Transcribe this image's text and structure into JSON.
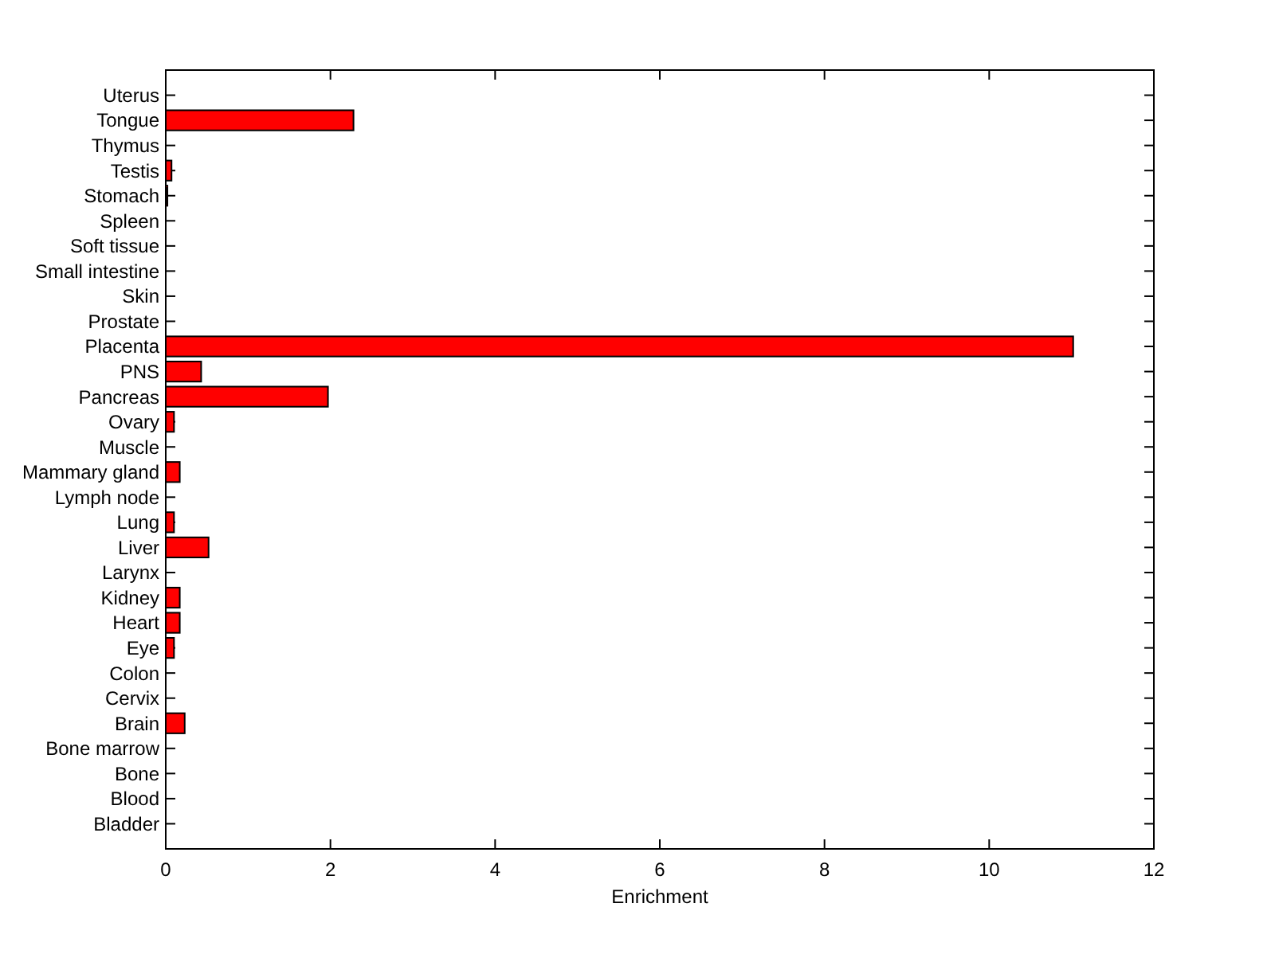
{
  "chart_data": {
    "type": "bar",
    "orientation": "horizontal",
    "xlabel": "Enrichment",
    "categories": [
      "Uterus",
      "Tongue",
      "Thymus",
      "Testis",
      "Stomach",
      "Spleen",
      "Soft tissue",
      "Small intestine",
      "Skin",
      "Prostate",
      "Placenta",
      "PNS",
      "Pancreas",
      "Ovary",
      "Muscle",
      "Mammary gland",
      "Lymph node",
      "Lung",
      "Liver",
      "Larynx",
      "Kidney",
      "Heart",
      "Eye",
      "Colon",
      "Cervix",
      "Brain",
      "Bone marrow",
      "Bone",
      "Blood",
      "Bladder"
    ],
    "values": [
      0,
      2.28,
      0,
      0.07,
      0.02,
      0,
      0,
      0,
      0,
      0,
      11.02,
      0.43,
      1.97,
      0.1,
      0,
      0.17,
      0,
      0.1,
      0.52,
      0,
      0.17,
      0.17,
      0.1,
      0,
      0,
      0.23,
      0,
      0,
      0,
      0
    ],
    "color": "#ff0000",
    "xlim": [
      0,
      12
    ],
    "xticks": [
      0,
      2,
      4,
      6,
      8,
      10,
      12
    ],
    "grid": false
  }
}
